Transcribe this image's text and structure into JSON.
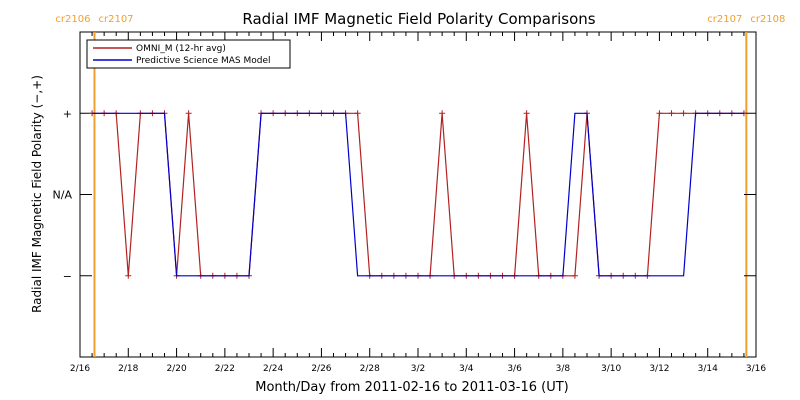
{
  "chart_data": {
    "type": "line",
    "title": "Radial IMF Magnetic Field Polarity Comparisons",
    "xlabel": "Month/Day from 2011-02-16 to 2011-03-16 (UT)",
    "ylabel": "Radial IMF Magnetic Field Polarity (−,+)",
    "xlim": [
      0,
      28
    ],
    "ylim": [
      -2,
      2
    ],
    "x_tick_values": [
      0,
      2,
      4,
      6,
      8,
      10,
      12,
      14,
      16,
      18,
      20,
      22,
      24,
      26,
      28
    ],
    "x_tick_labels": [
      "2/16",
      "2/18",
      "2/20",
      "2/22",
      "2/24",
      "2/26",
      "2/28",
      "3/2",
      "3/4",
      "3/6",
      "3/8",
      "3/10",
      "3/12",
      "3/14",
      "3/16"
    ],
    "y_tick_values": [
      -1,
      0,
      1
    ],
    "y_tick_labels": [
      "−",
      "N/A",
      "+"
    ],
    "rotation_markers": [
      {
        "x": 0.6,
        "left_label": "cr2106",
        "right_label": "cr2107",
        "color": "#f0a030"
      },
      {
        "x": 27.6,
        "left_label": "cr2107",
        "right_label": "cr2108",
        "color": "#f0a030"
      }
    ],
    "legend_position": "top-left",
    "grid": false,
    "series": [
      {
        "name": "OMNI_M (12-hr avg)",
        "color": "#b22222",
        "marker": "+",
        "x": [
          0.5,
          1.0,
          1.5,
          2.0,
          2.5,
          3.0,
          3.5,
          4.0,
          4.5,
          5.0,
          5.5,
          6.0,
          6.5,
          7.0,
          7.5,
          8.0,
          8.5,
          9.0,
          9.5,
          10.0,
          10.5,
          11.0,
          11.5,
          12.0,
          12.5,
          13.0,
          13.5,
          14.0,
          14.5,
          15.0,
          15.5,
          16.0,
          16.5,
          17.0,
          17.5,
          18.0,
          18.5,
          19.0,
          19.5,
          20.0,
          20.5,
          21.0,
          21.5,
          22.0,
          22.5,
          23.0,
          23.5,
          24.0,
          24.5,
          25.0,
          25.5,
          26.0,
          26.5,
          27.0,
          27.5
        ],
        "y": [
          1,
          1,
          1,
          -1,
          1,
          1,
          1,
          -1,
          1,
          -1,
          -1,
          -1,
          -1,
          -1,
          1,
          1,
          1,
          1,
          1,
          1,
          1,
          1,
          1,
          -1,
          -1,
          -1,
          -1,
          -1,
          -1,
          1,
          -1,
          -1,
          -1,
          -1,
          -1,
          -1,
          1,
          -1,
          -1,
          -1,
          -1,
          1,
          -1,
          -1,
          -1,
          -1,
          -1,
          1,
          1,
          1,
          1,
          1,
          1,
          1,
          1
        ]
      },
      {
        "name": "Predictive Science MAS Model",
        "color": "#0000cc",
        "marker": "+",
        "x": [
          0.5,
          1.0,
          1.5,
          2.0,
          2.5,
          3.0,
          3.5,
          4.0,
          4.5,
          5.0,
          5.5,
          6.0,
          6.5,
          7.0,
          7.5,
          8.0,
          8.5,
          9.0,
          9.5,
          10.0,
          10.5,
          11.0,
          11.5,
          12.0,
          12.5,
          13.0,
          13.5,
          14.0,
          14.5,
          15.0,
          15.5,
          16.0,
          16.5,
          17.0,
          17.5,
          18.0,
          18.5,
          19.0,
          19.5,
          20.0,
          20.5,
          21.0,
          21.5,
          22.0,
          22.5,
          23.0,
          23.5,
          24.0,
          24.5,
          25.0,
          25.5,
          26.0,
          26.5,
          27.0,
          27.5
        ],
        "y": [
          1,
          1,
          1,
          1,
          1,
          1,
          1,
          -1,
          -1,
          -1,
          -1,
          -1,
          -1,
          -1,
          1,
          1,
          1,
          1,
          1,
          1,
          1,
          1,
          -1,
          -1,
          -1,
          -1,
          -1,
          -1,
          -1,
          -1,
          -1,
          -1,
          -1,
          -1,
          -1,
          -1,
          -1,
          -1,
          -1,
          -1,
          1,
          1,
          -1,
          -1,
          -1,
          -1,
          -1,
          -1,
          -1,
          -1,
          1,
          1,
          1,
          1,
          1
        ]
      }
    ]
  }
}
